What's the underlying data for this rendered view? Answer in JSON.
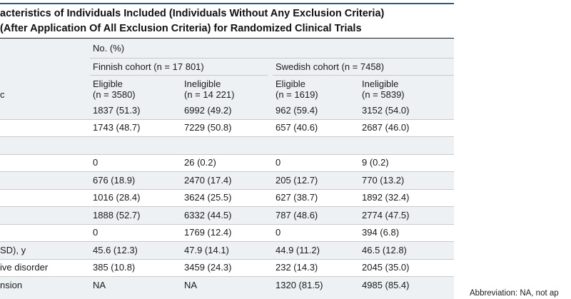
{
  "title": {
    "line1": "acteristics of Individuals Included (Individuals Without Any Exclusion Criteria)",
    "line2": "(After Application Of All Exclusion Criteria) for Randomized Clinical Trials"
  },
  "header": {
    "group_label": "No. (%)",
    "stub_label": "c",
    "cohorts": [
      {
        "label": "Finnish cohort (n = 17 801)"
      },
      {
        "label": "Swedish cohort (n = 7458)"
      }
    ],
    "columns": [
      {
        "line1": "Eligible",
        "line2": "(n = 3580)"
      },
      {
        "line1": "Ineligible",
        "line2": "(n = 14 221)"
      },
      {
        "line1": "Eligible",
        "line2": "(n = 1619)"
      },
      {
        "line1": "Ineligible",
        "line2": "(n = 5839)"
      }
    ]
  },
  "rows": [
    {
      "label": "",
      "values": [
        "1837 (51.3)",
        "6992 (49.2)",
        "962 (59.4)",
        "3152 (54.0)"
      ]
    },
    {
      "label": "",
      "values": [
        "1743 (48.7)",
        "7229 (50.8)",
        "657 (40.6)",
        "2687 (46.0)"
      ]
    },
    {
      "label": "",
      "values": [
        "",
        "",
        "",
        ""
      ]
    },
    {
      "label": "",
      "values": [
        "0",
        "26 (0.2)",
        "0",
        "9 (0.2)"
      ]
    },
    {
      "label": "",
      "values": [
        "676 (18.9)",
        "2470 (17.4)",
        "205 (12.7)",
        "770 (13.2)"
      ]
    },
    {
      "label": "",
      "values": [
        "1016 (28.4)",
        "3624 (25.5)",
        "627 (38.7)",
        "1892 (32.4)"
      ]
    },
    {
      "label": "",
      "values": [
        "1888 (52.7)",
        "6332 (44.5)",
        "787 (48.6)",
        "2774 (47.5)"
      ]
    },
    {
      "label": "",
      "values": [
        "0",
        "1769 (12.4)",
        "0",
        "394 (6.8)"
      ]
    },
    {
      "label": "SD), y",
      "values": [
        "45.6 (12.3)",
        "47.9 (14.1)",
        "44.9 (11.2)",
        "46.5 (12.8)"
      ]
    },
    {
      "label": "ive disorder",
      "values": [
        "385 (10.8)",
        "3459 (24.3)",
        "232 (14.3)",
        "2045 (35.0)"
      ]
    },
    {
      "label": "nsion",
      "values": [
        "NA",
        "NA",
        "1320 (81.5)",
        "4985 (85.4)"
      ]
    }
  ],
  "footnote": "Abbreviation: NA, not ap"
}
